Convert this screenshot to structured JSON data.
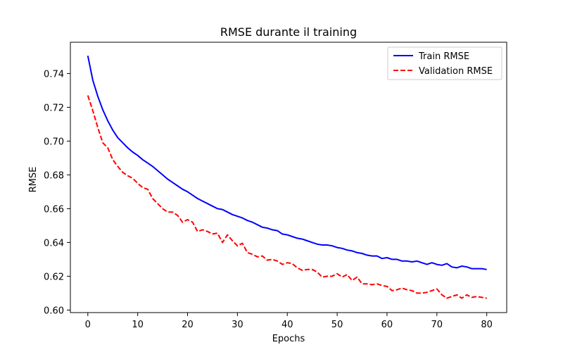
{
  "chart_data": {
    "type": "line",
    "title": "RMSE durante il training",
    "xlabel": "Epochs",
    "ylabel": "RMSE",
    "xlim": [
      -3.5,
      84
    ],
    "ylim": [
      0.5985,
      0.7585
    ],
    "xticks": [
      0,
      10,
      20,
      30,
      40,
      50,
      60,
      70,
      80
    ],
    "yticks": [
      0.6,
      0.62,
      0.64,
      0.66,
      0.68,
      0.7,
      0.72,
      0.74
    ],
    "ytick_labels": [
      "0.60",
      "0.62",
      "0.64",
      "0.66",
      "0.68",
      "0.70",
      "0.72",
      "0.74"
    ],
    "grid": false,
    "legend": {
      "position": "top-right"
    },
    "x": [
      0,
      1,
      2,
      3,
      4,
      5,
      6,
      7,
      8,
      9,
      10,
      11,
      12,
      13,
      14,
      15,
      16,
      17,
      18,
      19,
      20,
      21,
      22,
      23,
      24,
      25,
      26,
      27,
      28,
      29,
      30,
      31,
      32,
      33,
      34,
      35,
      36,
      37,
      38,
      39,
      40,
      41,
      42,
      43,
      44,
      45,
      46,
      47,
      48,
      49,
      50,
      51,
      52,
      53,
      54,
      55,
      56,
      57,
      58,
      59,
      60,
      61,
      62,
      63,
      64,
      65,
      66,
      67,
      68,
      69,
      70,
      71,
      72,
      73,
      74,
      75,
      76,
      77,
      78,
      79,
      80
    ],
    "series": [
      {
        "name": "Train RMSE",
        "color": "#0000ff",
        "style": "solid",
        "values": [
          0.7505,
          0.736,
          0.7265,
          0.7185,
          0.712,
          0.7065,
          0.702,
          0.699,
          0.696,
          0.6935,
          0.6915,
          0.689,
          0.687,
          0.685,
          0.6825,
          0.68,
          0.6775,
          0.6755,
          0.6735,
          0.6715,
          0.67,
          0.668,
          0.666,
          0.6645,
          0.663,
          0.6615,
          0.66,
          0.6595,
          0.658,
          0.6565,
          0.6555,
          0.6545,
          0.653,
          0.652,
          0.6505,
          0.649,
          0.6485,
          0.6475,
          0.647,
          0.645,
          0.6445,
          0.6435,
          0.6425,
          0.642,
          0.641,
          0.64,
          0.639,
          0.6385,
          0.6385,
          0.638,
          0.637,
          0.6365,
          0.6355,
          0.635,
          0.634,
          0.6335,
          0.6325,
          0.632,
          0.632,
          0.6305,
          0.631,
          0.63,
          0.63,
          0.629,
          0.629,
          0.6285,
          0.629,
          0.628,
          0.627,
          0.628,
          0.627,
          0.6265,
          0.6275,
          0.6255,
          0.625,
          0.626,
          0.6255,
          0.6245,
          0.6245,
          0.6245,
          0.624
        ]
      },
      {
        "name": "Validation RMSE",
        "color": "#ff0000",
        "style": "dashed",
        "values": [
          0.727,
          0.718,
          0.708,
          0.699,
          0.696,
          0.689,
          0.685,
          0.6815,
          0.6795,
          0.678,
          0.675,
          0.6725,
          0.6715,
          0.666,
          0.663,
          0.66,
          0.658,
          0.658,
          0.656,
          0.652,
          0.6535,
          0.652,
          0.6465,
          0.6475,
          0.6465,
          0.645,
          0.6455,
          0.64,
          0.6445,
          0.641,
          0.638,
          0.6395,
          0.634,
          0.633,
          0.6315,
          0.632,
          0.6295,
          0.63,
          0.629,
          0.627,
          0.628,
          0.6275,
          0.625,
          0.6235,
          0.624,
          0.624,
          0.6225,
          0.6195,
          0.62,
          0.62,
          0.6215,
          0.6195,
          0.621,
          0.6175,
          0.6195,
          0.6155,
          0.6155,
          0.615,
          0.6155,
          0.6145,
          0.614,
          0.6115,
          0.612,
          0.613,
          0.612,
          0.6115,
          0.61,
          0.61,
          0.6105,
          0.6115,
          0.6125,
          0.609,
          0.607,
          0.608,
          0.609,
          0.607,
          0.609,
          0.6075,
          0.608,
          0.6075,
          0.607
        ]
      }
    ]
  }
}
